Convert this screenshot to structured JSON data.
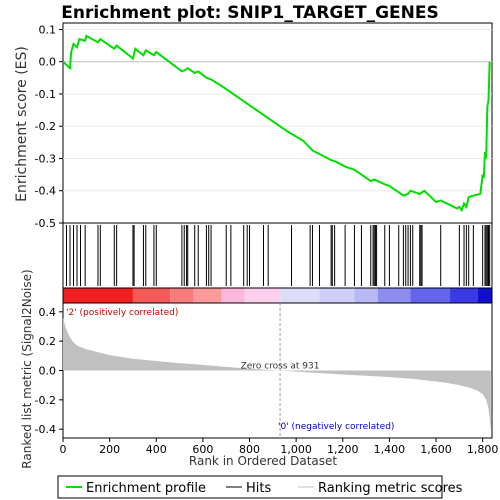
{
  "chart_data": {
    "type": "line",
    "title": "Enrichment plot: SNIP1_TARGET_GENES",
    "xlabel": "Rank in Ordered Dataset",
    "colors": {
      "enrichment_line": "#00dd00",
      "hits": "#000000",
      "metric_fill": "#c0c0c0",
      "pos_label": "#cc0000",
      "neg_label": "#0000cc",
      "zero_cross_line": "#a0a0a0"
    },
    "es_panel": {
      "ylabel": "Enrichment score (ES)",
      "ylim": [
        -0.5,
        0.12
      ],
      "yticks": [
        0.1,
        0.0,
        -0.1,
        -0.2,
        -0.3,
        -0.4,
        -0.5
      ],
      "ytick_labels": [
        "0.1",
        "0.0",
        "-0.1",
        "-0.2",
        "-0.3",
        "-0.4",
        "-0.5"
      ],
      "series": [
        {
          "name": "Enrichment profile",
          "x": [
            0,
            30,
            35,
            45,
            60,
            70,
            95,
            100,
            150,
            160,
            220,
            230,
            300,
            310,
            345,
            355,
            390,
            400,
            510,
            525,
            535,
            565,
            580,
            615,
            635,
            690,
            720,
            760,
            790,
            820,
            880,
            960,
            1030,
            1070,
            1110,
            1150,
            1170,
            1210,
            1250,
            1290,
            1320,
            1335,
            1380,
            1400,
            1440,
            1460,
            1480,
            1490,
            1510,
            1530,
            1550,
            1600,
            1620,
            1690,
            1700,
            1710,
            1720,
            1730,
            1740,
            1760,
            1790,
            1800,
            1805,
            1810,
            1815,
            1820,
            1825,
            1830
          ],
          "y": [
            0.0,
            -0.02,
            0.03,
            0.055,
            0.045,
            0.07,
            0.065,
            0.08,
            0.06,
            0.07,
            0.04,
            0.05,
            0.01,
            0.04,
            0.02,
            0.035,
            0.02,
            0.03,
            -0.03,
            -0.025,
            -0.02,
            -0.035,
            -0.03,
            -0.05,
            -0.055,
            -0.08,
            -0.095,
            -0.115,
            -0.13,
            -0.145,
            -0.175,
            -0.215,
            -0.245,
            -0.275,
            -0.29,
            -0.305,
            -0.31,
            -0.325,
            -0.335,
            -0.355,
            -0.37,
            -0.365,
            -0.38,
            -0.385,
            -0.405,
            -0.415,
            -0.41,
            -0.4,
            -0.405,
            -0.41,
            -0.4,
            -0.435,
            -0.43,
            -0.455,
            -0.45,
            -0.46,
            -0.44,
            -0.45,
            -0.42,
            -0.415,
            -0.41,
            -0.35,
            -0.36,
            -0.28,
            -0.3,
            -0.14,
            -0.12,
            0.0
          ]
        }
      ]
    },
    "hits": {
      "label": "Hits",
      "positions": [
        15,
        30,
        45,
        60,
        75,
        95,
        150,
        160,
        220,
        230,
        300,
        305,
        345,
        355,
        390,
        400,
        510,
        520,
        530,
        535,
        565,
        580,
        615,
        625,
        635,
        700,
        720,
        775,
        790,
        800,
        860,
        880,
        980,
        1060,
        1070,
        1100,
        1150,
        1155,
        1165,
        1210,
        1250,
        1280,
        1320,
        1330,
        1335,
        1340,
        1345,
        1380,
        1400,
        1440,
        1460,
        1470,
        1480,
        1490,
        1500,
        1530,
        1535,
        1540,
        1620,
        1700,
        1720,
        1730,
        1740,
        1760,
        1800,
        1810,
        1815,
        1820,
        1825,
        1830
      ]
    },
    "rank_bar": {
      "pos_label": "'2' (positively correlated)",
      "neg_label": "'0' (negatively correlated)",
      "zero_cross_label": "Zero cross at 931",
      "zero_cross": 931,
      "segments": [
        {
          "start": 0,
          "end": 300,
          "color": "#ee2020"
        },
        {
          "start": 300,
          "end": 460,
          "color": "#f45a5a"
        },
        {
          "start": 460,
          "end": 560,
          "color": "#f87c7c"
        },
        {
          "start": 560,
          "end": 680,
          "color": "#fa9a9a"
        },
        {
          "start": 680,
          "end": 780,
          "color": "#fcb8dc"
        },
        {
          "start": 780,
          "end": 931,
          "color": "#fdd0ee"
        },
        {
          "start": 931,
          "end": 1100,
          "color": "#ddddfa"
        },
        {
          "start": 1100,
          "end": 1250,
          "color": "#cfcff8"
        },
        {
          "start": 1250,
          "end": 1350,
          "color": "#b8b8f2"
        },
        {
          "start": 1350,
          "end": 1490,
          "color": "#8d8df0"
        },
        {
          "start": 1490,
          "end": 1660,
          "color": "#6464ec"
        },
        {
          "start": 1660,
          "end": 1780,
          "color": "#3a3ae4"
        },
        {
          "start": 1780,
          "end": 1840,
          "color": "#1010cc"
        }
      ]
    },
    "metric_panel": {
      "ylabel": "Ranked list metric (Signal2Noise)",
      "ylim": [
        -0.46,
        0.46
      ],
      "yticks": [
        0.4,
        0.2,
        0.0,
        -0.2,
        -0.4
      ],
      "ytick_labels": [
        "0.4",
        "0.2",
        "0.0",
        "-0.2",
        "-0.4"
      ],
      "x": [
        0,
        10,
        25,
        40,
        60,
        100,
        200,
        300,
        400,
        500,
        600,
        700,
        800,
        900,
        931,
        1000,
        1100,
        1200,
        1300,
        1400,
        1500,
        1600,
        1650,
        1700,
        1750,
        1780,
        1800,
        1815,
        1825,
        1830,
        1835
      ],
      "values": [
        0.36,
        0.3,
        0.24,
        0.2,
        0.17,
        0.145,
        0.105,
        0.08,
        0.065,
        0.05,
        0.038,
        0.025,
        0.012,
        0.003,
        0.0,
        -0.008,
        -0.018,
        -0.027,
        -0.036,
        -0.045,
        -0.057,
        -0.075,
        -0.085,
        -0.1,
        -0.12,
        -0.14,
        -0.16,
        -0.2,
        -0.26,
        -0.33,
        -0.42
      ]
    },
    "xaxis": {
      "xlim": [
        0,
        1840
      ],
      "xticks": [
        0,
        200,
        400,
        600,
        800,
        1000,
        1200,
        1400,
        1600,
        1800
      ],
      "xtick_labels": [
        "0",
        "200",
        "400",
        "600",
        "800",
        "1,000",
        "1,200",
        "1,400",
        "1,600",
        "1,800"
      ]
    },
    "legend": {
      "placement": "bottom",
      "entries": [
        {
          "label": "Enrichment profile",
          "kind": "line",
          "color": "#00dd00"
        },
        {
          "label": "Hits",
          "kind": "line",
          "color": "#000000"
        },
        {
          "label": "Ranking metric scores",
          "kind": "line",
          "color": "#c0c0c0"
        }
      ]
    }
  }
}
